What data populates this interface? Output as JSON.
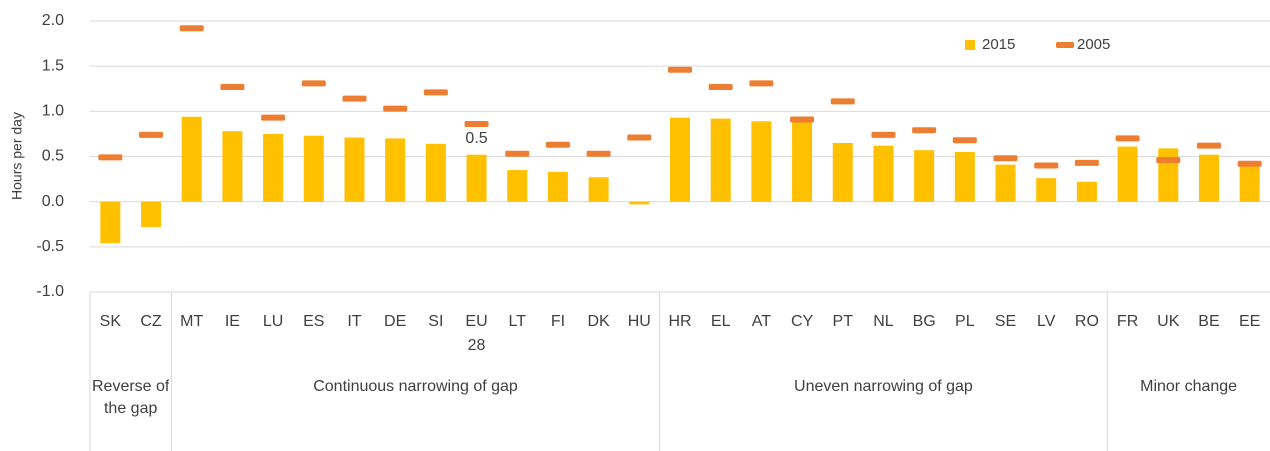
{
  "chart_data": {
    "type": "bar",
    "y_label": "Hours per day",
    "categories": [
      "SK",
      "CZ",
      "MT",
      "IE",
      "LU",
      "ES",
      "IT",
      "DE",
      "SI",
      "EU 28",
      "LT",
      "FI",
      "DK",
      "HU",
      "HR",
      "EL",
      "AT",
      "CY",
      "PT",
      "NL",
      "BG",
      "PL",
      "SE",
      "LV",
      "RO",
      "FR",
      "UK",
      "BE",
      "EE"
    ],
    "series": [
      {
        "name": "2015",
        "color": "#FFC000",
        "marker": "bar",
        "values": [
          -0.46,
          -0.28,
          0.94,
          0.78,
          0.75,
          0.73,
          0.71,
          0.7,
          0.64,
          0.52,
          0.35,
          0.33,
          0.27,
          -0.03,
          0.93,
          0.92,
          0.89,
          0.89,
          0.65,
          0.62,
          0.57,
          0.55,
          0.41,
          0.26,
          0.22,
          0.61,
          0.59,
          0.52,
          0.4
        ],
        "value_labels": [
          null,
          null,
          null,
          null,
          null,
          null,
          null,
          null,
          null,
          "0.5",
          null,
          null,
          null,
          null,
          null,
          null,
          null,
          null,
          null,
          null,
          null,
          null,
          null,
          null,
          null,
          null,
          null,
          null,
          null
        ]
      },
      {
        "name": "2005",
        "color": "#ED7D31",
        "marker": "dash",
        "values": [
          0.49,
          0.74,
          1.92,
          1.27,
          0.93,
          1.31,
          1.14,
          1.03,
          1.21,
          0.86,
          0.53,
          0.63,
          0.53,
          0.71,
          1.46,
          1.27,
          1.31,
          0.91,
          1.11,
          0.74,
          0.79,
          0.68,
          0.48,
          0.4,
          0.43,
          0.7,
          0.46,
          0.62,
          0.42
        ]
      }
    ],
    "groups": [
      {
        "label": "Reverse of the gap",
        "size": 2
      },
      {
        "label": "Continuous narrowing of gap",
        "size": 12
      },
      {
        "label": "Uneven narrowing of gap",
        "size": 11
      },
      {
        "label": "Minor change",
        "size": 4
      }
    ],
    "ylim": [
      -1,
      2
    ],
    "yticks": [
      {
        "value": -1,
        "label": "-1.0"
      },
      -0.5,
      {
        "value": 0,
        "label": "0.0"
      },
      0.5,
      {
        "value": 1,
        "label": "1.0"
      },
      1.5,
      {
        "value": 2,
        "label": "2.0"
      }
    ],
    "grid": true,
    "legend": "upper right"
  }
}
